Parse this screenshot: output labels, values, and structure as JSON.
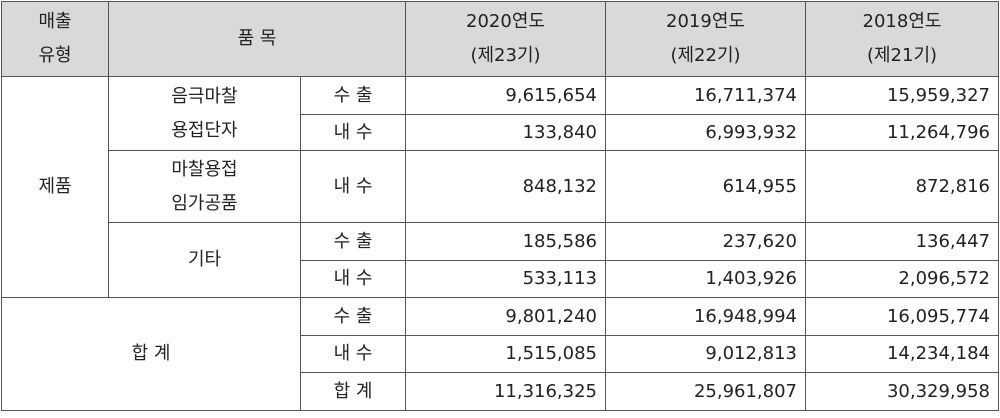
{
  "table": {
    "headers": [
      "매출\n유형",
      "품 목",
      "2020연도\n(제23기)",
      "2019연도\n(제22기)",
      "2018연도\n(제21기)"
    ],
    "sections": [
      {
        "label": "제품",
        "items": [
          {
            "name": "음극마찰\n용접단자",
            "rows": [
              {
                "kind": "수 출",
                "values": [
                  "9,615,654",
                  "16,711,374",
                  "15,959,327"
                ]
              },
              {
                "kind": "내 수",
                "values": [
                  "133,840",
                  "6,993,932",
                  "11,264,796"
                ]
              }
            ]
          },
          {
            "name": "마찰용접\n임가공품",
            "rows": [
              {
                "kind": "내 수",
                "values": [
                  "848,132",
                  "614,955",
                  "872,816"
                ]
              }
            ]
          },
          {
            "name": "기타",
            "rows": [
              {
                "kind": "수 출",
                "values": [
                  "185,586",
                  "237,620",
                  "136,447"
                ]
              },
              {
                "kind": "내 수",
                "values": [
                  "533,113",
                  "1,403,926",
                  "2,096,572"
                ]
              }
            ]
          }
        ]
      },
      {
        "label": "합 계",
        "rows": [
          {
            "kind": "수 출",
            "values": [
              "9,801,240",
              "16,948,994",
              "16,095,774"
            ]
          },
          {
            "kind": "내 수",
            "values": [
              "1,515,085",
              "9,012,813",
              "14,234,184"
            ]
          },
          {
            "kind": "합 계",
            "values": [
              "11,316,325",
              "25,961,807",
              "30,329,958"
            ]
          }
        ]
      }
    ]
  }
}
